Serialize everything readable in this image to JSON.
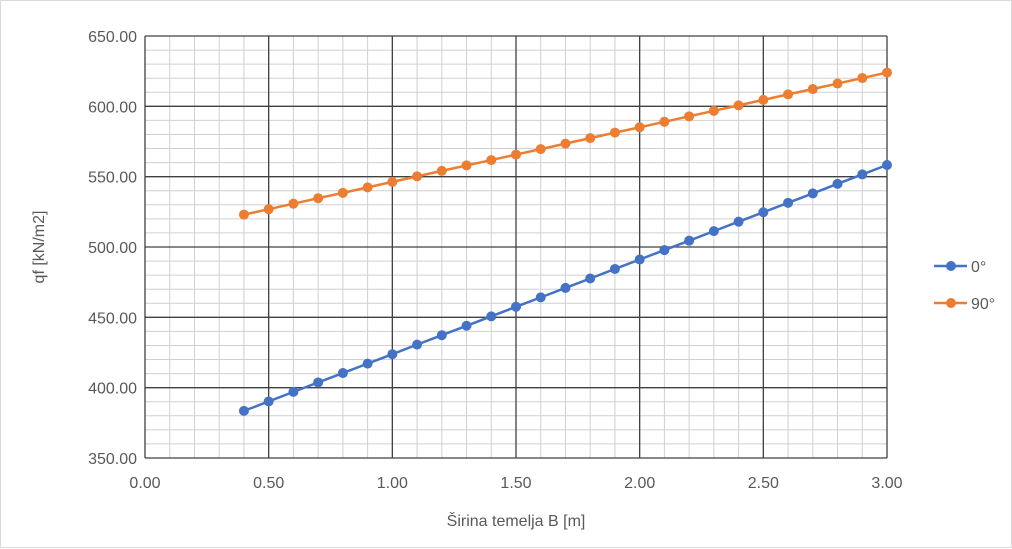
{
  "chart_data": {
    "type": "line",
    "title": "",
    "xlabel": "Širina temelja B [m]",
    "ylabel": "qf [kN/m2]",
    "xlim": [
      0,
      3
    ],
    "ylim": [
      350,
      650
    ],
    "x_major_ticks": [
      "0.00",
      "0.50",
      "1.00",
      "1.50",
      "2.00",
      "2.50",
      "3.00"
    ],
    "y_major_ticks": [
      "350.00",
      "400.00",
      "450.00",
      "500.00",
      "550.00",
      "600.00",
      "650.00"
    ],
    "x_minor_step": 0.1,
    "y_minor_step": 10,
    "grid": true,
    "legend_position": "right",
    "x": [
      0.4,
      0.5,
      0.6,
      0.7,
      0.8,
      0.9,
      1.0,
      1.1,
      1.2,
      1.3,
      1.4,
      1.5,
      1.6,
      1.7,
      1.8,
      1.9,
      2.0,
      2.1,
      2.2,
      2.3,
      2.4,
      2.5,
      2.6,
      2.7,
      2.8,
      2.9,
      3.0
    ],
    "series": [
      {
        "name": "0°",
        "color": "#4472c4",
        "values": [
          383.5,
          390.2,
          397.0,
          403.7,
          410.4,
          417.1,
          423.8,
          430.6,
          437.3,
          444.0,
          450.7,
          457.5,
          464.2,
          470.9,
          477.6,
          484.4,
          491.1,
          497.8,
          504.5,
          511.3,
          518.0,
          524.7,
          531.4,
          538.1,
          544.9,
          551.6,
          558.3
        ]
      },
      {
        "name": "90°",
        "color": "#ed7d31",
        "values": [
          523.0,
          526.9,
          530.8,
          534.7,
          538.5,
          542.4,
          546.3,
          550.2,
          554.1,
          558.0,
          561.8,
          565.7,
          569.6,
          573.5,
          577.4,
          581.3,
          585.1,
          589.0,
          592.9,
          596.8,
          600.7,
          604.6,
          608.5,
          612.3,
          616.2,
          620.1,
          624.0
        ]
      }
    ]
  }
}
